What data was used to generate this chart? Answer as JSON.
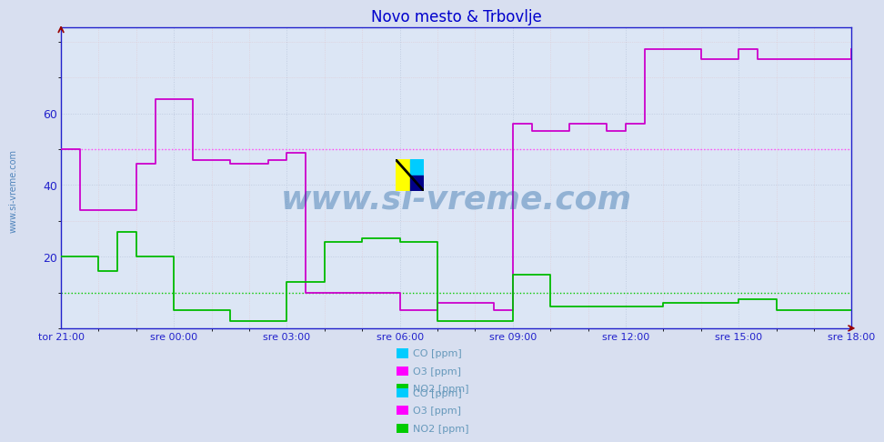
{
  "title": "Novo mesto & Trbovlje",
  "title_color": "#0000cc",
  "bg_color": "#d8dff0",
  "plot_bg_color": "#dce6f5",
  "grid_color_major": "#c0cce0",
  "grid_color_minor": "#e0c8d0",
  "axis_color": "#2222cc",
  "watermark": "www.si-vreme.com",
  "watermark_color": "#1a5fa0",
  "ylim": [
    0,
    84
  ],
  "yticks": [
    20,
    40,
    60
  ],
  "xlabel_times": [
    "tor 21:00",
    "sre 00:00",
    "sre 03:00",
    "sre 06:00",
    "sre 09:00",
    "sre 12:00",
    "sre 15:00",
    "sre 18:00"
  ],
  "x_tick_positions": [
    0,
    3,
    6,
    9,
    12,
    15,
    18,
    21
  ],
  "hline_o3_y": 50,
  "hline_o3_color": "#ff44ff",
  "hline_no2_y": 10,
  "hline_no2_color": "#00cc00",
  "legend_labels": [
    "CO [ppm]",
    "O3 [ppm]",
    "NO2 [ppm]"
  ],
  "legend_colors": [
    "#00ccff",
    "#ff00ff",
    "#00cc00"
  ],
  "o3_color": "#cc00cc",
  "no2_color": "#00bb00",
  "o3_lw": 1.3,
  "no2_lw": 1.3,
  "o3_x": [
    0,
    0.5,
    1.5,
    2.0,
    2.5,
    3.5,
    4.5,
    5.5,
    6.0,
    6.5,
    9.0,
    10.0,
    11.5,
    12.0,
    12.5,
    13.5,
    14.5,
    15.0,
    15.5,
    17.0,
    18.0,
    18.5,
    21.0
  ],
  "o3_y": [
    50,
    33,
    33,
    46,
    64,
    47,
    46,
    47,
    49,
    10,
    5,
    7,
    5,
    57,
    55,
    57,
    55,
    57,
    78,
    75,
    78,
    75,
    78
  ],
  "no2_x": [
    0,
    1.0,
    1.5,
    2.0,
    3.0,
    3.5,
    4.5,
    5.5,
    6.0,
    7.0,
    8.0,
    9.0,
    10.0,
    11.0,
    12.0,
    13.0,
    14.0,
    16.0,
    17.0,
    18.0,
    19.0,
    20.0,
    21.0
  ],
  "no2_y": [
    20,
    16,
    27,
    20,
    5,
    5,
    2,
    2,
    13,
    24,
    25,
    24,
    2,
    2,
    15,
    6,
    6,
    7,
    7,
    8,
    5,
    5,
    5
  ]
}
